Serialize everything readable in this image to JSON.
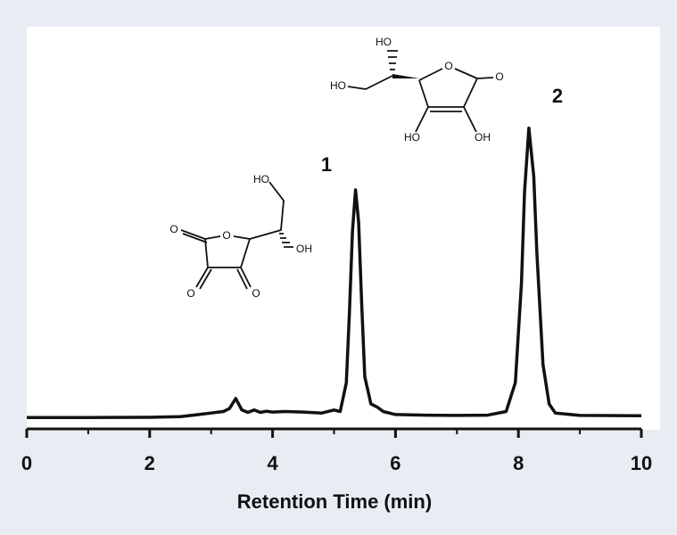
{
  "chart_data": {
    "type": "line",
    "xlabel": "Retention Time (min)",
    "xlim": [
      0,
      10
    ],
    "xticks": [
      0,
      2,
      4,
      6,
      8,
      10
    ],
    "xminorticks": [
      1,
      3,
      5,
      7,
      9
    ],
    "ylim": [
      0,
      100
    ],
    "series": [
      {
        "color": "#111111",
        "x": [
          0,
          1,
          2,
          2.5,
          2.8,
          3.0,
          3.2,
          3.3,
          3.4,
          3.5,
          3.6,
          3.7,
          3.8,
          3.9,
          4.0,
          4.2,
          4.5,
          4.8,
          5.0,
          5.1,
          5.2,
          5.25,
          5.3,
          5.35,
          5.4,
          5.45,
          5.5,
          5.6,
          5.7,
          5.8,
          6.0,
          6.5,
          7.0,
          7.5,
          7.8,
          7.95,
          8.05,
          8.1,
          8.17,
          8.25,
          8.3,
          8.4,
          8.5,
          8.6,
          9,
          10
        ],
        "values": [
          0.5,
          0.5,
          0.6,
          0.8,
          1.5,
          2,
          2.5,
          3.5,
          6.8,
          3,
          2.2,
          3,
          2.2,
          2.6,
          2.3,
          2.5,
          2.3,
          2,
          3,
          2.5,
          12,
          35,
          62,
          75.6,
          65,
          38,
          14,
          5,
          4,
          2.5,
          1.5,
          1.3,
          1.2,
          1.3,
          2.5,
          12,
          45,
          75,
          96,
          80,
          55,
          18,
          5,
          2,
          1.2,
          1.1
        ]
      }
    ],
    "annotations": [
      "1",
      "2"
    ],
    "structures": [
      {
        "labels": [
          "HO",
          "O",
          "O",
          "OH",
          "O",
          "O"
        ]
      },
      {
        "labels": [
          "HO",
          "HO",
          "O",
          "O",
          "HO",
          "OH"
        ]
      }
    ]
  }
}
